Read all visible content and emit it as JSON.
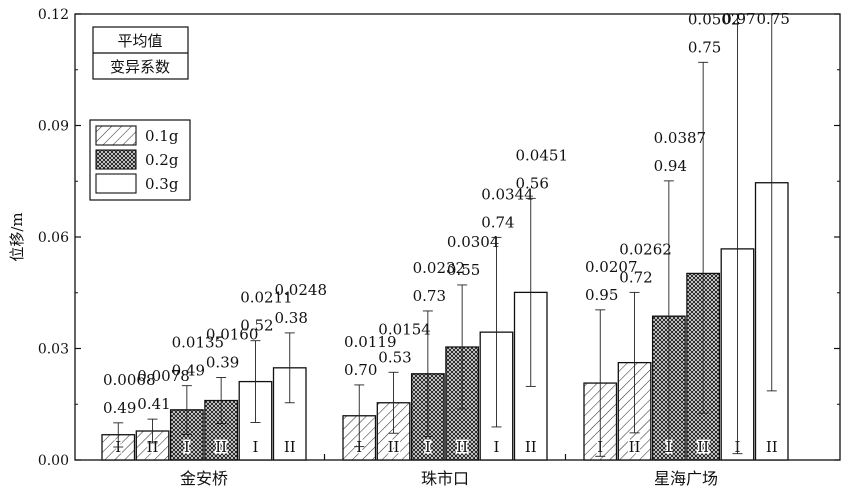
{
  "chart_data": {
    "type": "bar",
    "ylabel": "位移/m",
    "ylim": [
      0,
      0.12
    ],
    "yticks": [
      "0.00",
      "0.03",
      "0.06",
      "0.09",
      "0.12"
    ],
    "categories": [
      "金安桥",
      "珠市口",
      "星海广场"
    ],
    "series": [
      {
        "name": "0.1g",
        "pattern": "hatch"
      },
      {
        "name": "0.2g",
        "pattern": "crosshatch"
      },
      {
        "name": "0.3g",
        "pattern": "blank"
      }
    ],
    "legend": {
      "position": "top-left",
      "stats_box": [
        "平均值",
        "变异系数"
      ]
    },
    "groups": [
      {
        "category": "金安桥",
        "bars": [
          {
            "series": "0.1g",
            "site": "I",
            "mean": 0.0068,
            "cv": 0.49,
            "err_low": 0.0035,
            "err_high": 0.01
          },
          {
            "series": "0.1g",
            "site": "II",
            "mean": 0.0078,
            "cv": 0.41,
            "err_low": 0.0046,
            "err_high": 0.011
          },
          {
            "series": "0.2g",
            "site": "I",
            "mean": 0.0135,
            "cv": 0.49,
            "err_low": 0.0069,
            "err_high": 0.02
          },
          {
            "series": "0.2g",
            "site": "II",
            "mean": 0.016,
            "cv": 0.39,
            "err_low": 0.0098,
            "err_high": 0.0222
          },
          {
            "series": "0.3g",
            "site": "I",
            "mean": 0.0211,
            "cv": 0.52,
            "err_low": 0.0101,
            "err_high": 0.0321
          },
          {
            "series": "0.3g",
            "site": "II",
            "mean": 0.0248,
            "cv": 0.38,
            "err_low": 0.0154,
            "err_high": 0.0342
          }
        ]
      },
      {
        "category": "珠市口",
        "bars": [
          {
            "series": "0.1g",
            "site": "I",
            "mean": 0.0119,
            "cv": 0.7,
            "err_low": 0.0036,
            "err_high": 0.0202
          },
          {
            "series": "0.1g",
            "site": "II",
            "mean": 0.0154,
            "cv": 0.53,
            "err_low": 0.0072,
            "err_high": 0.0236
          },
          {
            "series": "0.2g",
            "site": "I",
            "mean": 0.0232,
            "cv": 0.73,
            "err_low": 0.0063,
            "err_high": 0.0401
          },
          {
            "series": "0.2g",
            "site": "II",
            "mean": 0.0304,
            "cv": 0.55,
            "err_low": 0.0137,
            "err_high": 0.0471
          },
          {
            "series": "0.3g",
            "site": "I",
            "mean": 0.0344,
            "cv": 0.74,
            "err_low": 0.0089,
            "err_high": 0.0599
          },
          {
            "series": "0.3g",
            "site": "II",
            "mean": 0.0451,
            "cv": 0.56,
            "err_low": 0.0198,
            "err_high": 0.0704
          }
        ]
      },
      {
        "category": "星海广场",
        "bars": [
          {
            "series": "0.1g",
            "site": "I",
            "mean": 0.0207,
            "cv": 0.95,
            "err_low": 0.001,
            "err_high": 0.0404
          },
          {
            "series": "0.1g",
            "site": "II",
            "mean": 0.0262,
            "cv": 0.72,
            "err_low": 0.0073,
            "err_high": 0.0451
          },
          {
            "series": "0.2g",
            "site": "I",
            "mean": 0.0387,
            "cv": 0.94,
            "err_low": 0.0023,
            "err_high": 0.0751
          },
          {
            "series": "0.2g",
            "site": "II",
            "mean": 0.0502,
            "cv": 0.75,
            "err_low": 0.0126,
            "err_high": 0.107
          },
          {
            "series": "0.3g",
            "site": "I",
            "mean": 0.0568,
            "cv": 0.97,
            "err_low": 0.0017,
            "err_high": 0.12
          },
          {
            "series": "0.3g",
            "site": "II",
            "mean": 0.0746,
            "cv": 0.75,
            "err_low": 0.0186,
            "err_high": 0.12
          }
        ]
      }
    ]
  }
}
